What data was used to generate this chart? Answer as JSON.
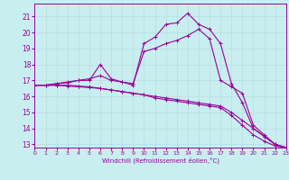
{
  "xlabel": "Windchill (Refroidissement éolien,°C)",
  "background_color": "#c8eef0",
  "line_color": "#990099",
  "grid_color": "#b8dde0",
  "xlim": [
    0,
    23
  ],
  "ylim": [
    12.8,
    21.8
  ],
  "yticks": [
    13,
    14,
    15,
    16,
    17,
    18,
    19,
    20,
    21
  ],
  "xticks": [
    0,
    1,
    2,
    3,
    4,
    5,
    6,
    7,
    8,
    9,
    10,
    11,
    12,
    13,
    14,
    15,
    16,
    17,
    18,
    19,
    20,
    21,
    22,
    23
  ],
  "series": [
    {
      "x": [
        0,
        1,
        2,
        3,
        4,
        5,
        6,
        7,
        8,
        9,
        10,
        11,
        12,
        13,
        14,
        15,
        16,
        17,
        18,
        19,
        20,
        21,
        22,
        23
      ],
      "y": [
        16.7,
        16.7,
        16.8,
        16.9,
        17.0,
        17.0,
        18.0,
        17.1,
        16.9,
        16.7,
        19.3,
        19.7,
        20.5,
        20.6,
        21.2,
        20.5,
        20.2,
        19.3,
        16.8,
        15.6,
        14.0,
        13.5,
        13.0,
        12.8
      ]
    },
    {
      "x": [
        0,
        1,
        2,
        3,
        4,
        5,
        6,
        7,
        8,
        9,
        10,
        11,
        12,
        13,
        14,
        15,
        16,
        17,
        18,
        19,
        20,
        21,
        22,
        23
      ],
      "y": [
        16.7,
        16.7,
        16.8,
        16.85,
        17.0,
        17.1,
        17.3,
        17.0,
        16.9,
        16.8,
        18.8,
        19.0,
        19.3,
        19.5,
        19.8,
        20.2,
        19.6,
        17.0,
        16.6,
        16.2,
        14.2,
        13.6,
        13.0,
        12.8
      ]
    },
    {
      "x": [
        0,
        1,
        2,
        3,
        4,
        5,
        6,
        7,
        8,
        9,
        10,
        11,
        12,
        13,
        14,
        15,
        16,
        17,
        18,
        19,
        20,
        21,
        22,
        23
      ],
      "y": [
        16.7,
        16.7,
        16.7,
        16.7,
        16.65,
        16.6,
        16.5,
        16.4,
        16.3,
        16.2,
        16.1,
        16.0,
        15.9,
        15.8,
        15.7,
        15.6,
        15.5,
        15.4,
        15.0,
        14.5,
        14.0,
        13.5,
        13.0,
        12.8
      ]
    },
    {
      "x": [
        0,
        1,
        2,
        3,
        4,
        5,
        6,
        7,
        8,
        9,
        10,
        11,
        12,
        13,
        14,
        15,
        16,
        17,
        18,
        19,
        20,
        21,
        22,
        23
      ],
      "y": [
        16.7,
        16.7,
        16.7,
        16.65,
        16.6,
        16.55,
        16.5,
        16.4,
        16.3,
        16.2,
        16.1,
        15.9,
        15.8,
        15.7,
        15.6,
        15.5,
        15.4,
        15.3,
        14.8,
        14.2,
        13.6,
        13.2,
        12.9,
        12.8
      ]
    }
  ]
}
